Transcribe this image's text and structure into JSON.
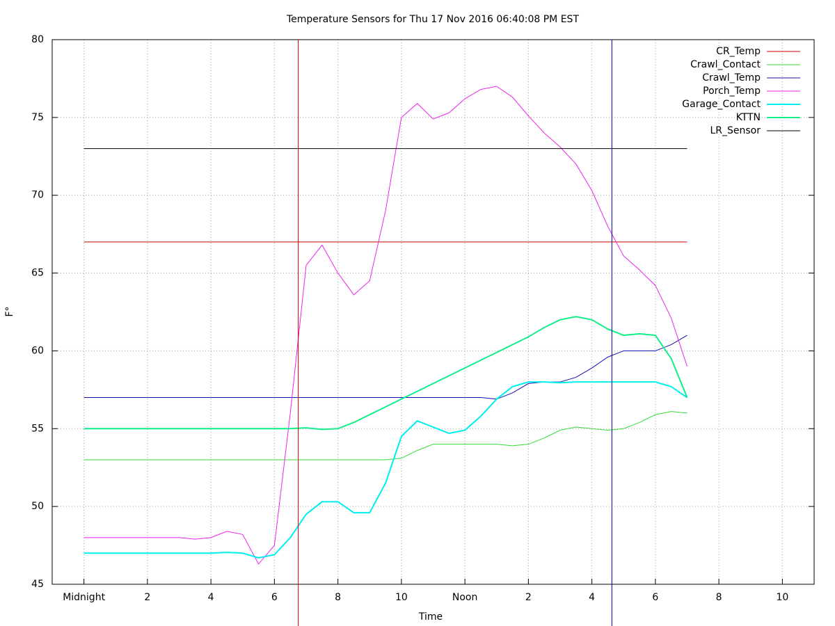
{
  "chart_data": {
    "type": "line",
    "title": "Temperature Sensors for Thu 17 Nov 2016 06:40:08 PM EST",
    "x_label": "Time",
    "y_label": "F°",
    "xlim": [
      -1,
      23
    ],
    "ylim": [
      45,
      80
    ],
    "xticks": [
      {
        "value": 0,
        "label": "Midnight"
      },
      2,
      4,
      6,
      8,
      10,
      {
        "value": 12,
        "label": "Noon"
      },
      {
        "value": 14,
        "label": "2"
      },
      {
        "value": 16,
        "label": "4"
      },
      {
        "value": 18,
        "label": "6"
      },
      {
        "value": 20,
        "label": "8"
      },
      {
        "value": 22,
        "label": "10"
      }
    ],
    "yticks": [
      45,
      50,
      55,
      60,
      65,
      70,
      75,
      80
    ],
    "grid": true,
    "legend": "top-right",
    "markers": [
      {
        "x": 6.75,
        "color": "#cc0000"
      },
      {
        "x": 16.63,
        "color": "#000080"
      }
    ],
    "x": [
      0,
      0.5,
      1,
      1.5,
      2,
      2.5,
      3,
      3.5,
      4,
      4.5,
      5,
      5.5,
      6,
      6.5,
      7,
      7.5,
      8,
      8.5,
      9,
      9.5,
      10,
      10.5,
      11,
      11.5,
      12,
      12.5,
      13,
      13.5,
      14,
      14.5,
      15,
      15.5,
      16,
      16.5,
      17,
      17.5,
      18,
      18.5,
      19
    ],
    "series": [
      {
        "name": "CR_Temp",
        "color": "#cc0000",
        "line_width": 1,
        "values": [
          67,
          67,
          67,
          67,
          67,
          67,
          67,
          67,
          67,
          67,
          67,
          67,
          67,
          67,
          67,
          67,
          67,
          67,
          67,
          67,
          67,
          67,
          67,
          67,
          67,
          67,
          67,
          67,
          67,
          67,
          67,
          67,
          67,
          67,
          67,
          67,
          67,
          67,
          67
        ]
      },
      {
        "name": "Crawl_Contact",
        "color": "#33dd33",
        "line_width": 1,
        "values": [
          53,
          53,
          53,
          53,
          53,
          53,
          53,
          53,
          53,
          53,
          53,
          53,
          53,
          53,
          53,
          53,
          53,
          53,
          53,
          53,
          53.1,
          53.6,
          54,
          54,
          54,
          54,
          54,
          53.9,
          54,
          54.4,
          54.9,
          55.1,
          55,
          54.9,
          55,
          55.4,
          55.9,
          56.1,
          56
        ]
      },
      {
        "name": "Crawl_Temp",
        "color": "#1010b0",
        "line_width": 1,
        "values": [
          57,
          57,
          57,
          57,
          57,
          57,
          57,
          57,
          57,
          57,
          57,
          57,
          57,
          57,
          57,
          57,
          57,
          57,
          57,
          57,
          57,
          57,
          57,
          57,
          57,
          57,
          56.9,
          57.3,
          57.9,
          58,
          58,
          58.3,
          58.9,
          59.6,
          60,
          60,
          60,
          60.4,
          61
        ]
      },
      {
        "name": "Porch_Temp",
        "color": "#ee22ee",
        "line_width": 1,
        "values": [
          48,
          48,
          48,
          48,
          48,
          48,
          48,
          47.9,
          48,
          48.4,
          48.2,
          46.3,
          47.5,
          56,
          65.5,
          66.8,
          65,
          63.6,
          64.5,
          69,
          75,
          75.9,
          74.9,
          75.3,
          76.2,
          76.8,
          77,
          76.3,
          75.1,
          74,
          73.1,
          72,
          70.3,
          68,
          66.1,
          65.2,
          64.2,
          62.1,
          59
        ]
      },
      {
        "name": "Garage_Contact",
        "color": "#00eeee",
        "line_width": 2,
        "values": [
          47,
          47,
          47,
          47,
          47,
          47,
          47,
          47,
          47,
          47.05,
          47,
          46.7,
          46.9,
          48,
          49.5,
          50.3,
          50.3,
          49.6,
          49.6,
          51.5,
          54.5,
          55.5,
          55.1,
          54.7,
          54.9,
          55.8,
          56.9,
          57.7,
          58,
          58,
          57.95,
          58,
          58,
          58,
          58,
          58,
          58,
          57.7,
          57
        ]
      },
      {
        "name": "KTTN",
        "color": "#11ee88",
        "line_width": 2,
        "values": [
          55,
          55,
          55,
          55,
          55,
          55,
          55,
          55,
          55,
          55,
          55,
          55,
          55,
          55,
          55.05,
          54.95,
          55,
          55.4,
          55.9,
          56.4,
          56.9,
          57.4,
          57.9,
          58.4,
          58.9,
          59.4,
          59.9,
          60.4,
          60.9,
          61.5,
          62,
          62.2,
          62,
          61.4,
          61,
          61.1,
          61,
          59.5,
          57
        ]
      },
      {
        "name": "LR_Sensor",
        "color": "#000000",
        "line_width": 1,
        "values": [
          73,
          73,
          73,
          73,
          73,
          73,
          73,
          73,
          73,
          73,
          73,
          73,
          73,
          73,
          73,
          73,
          73,
          73,
          73,
          73,
          73,
          73,
          73,
          73,
          73,
          73,
          73,
          73,
          73,
          73,
          73,
          73,
          73,
          73,
          73,
          73,
          73,
          73,
          73
        ]
      }
    ]
  }
}
